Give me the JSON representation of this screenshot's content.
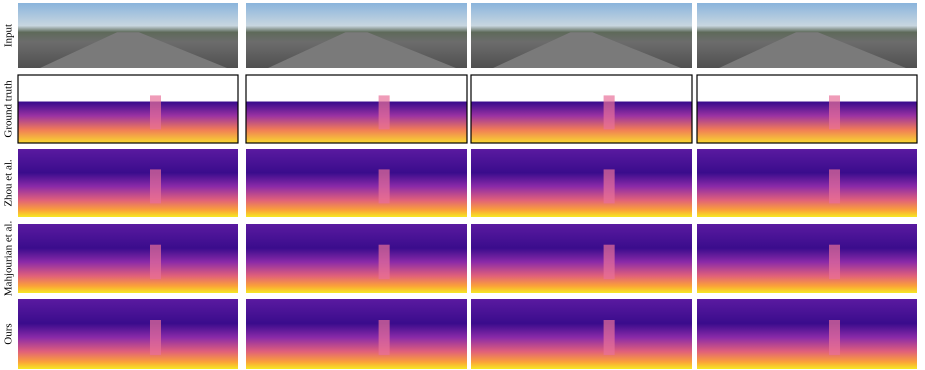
{
  "row_labels": [
    "Input",
    "Ground truth",
    "Zhou et al.",
    "Mahjourian et al.",
    "Ours"
  ]
}
